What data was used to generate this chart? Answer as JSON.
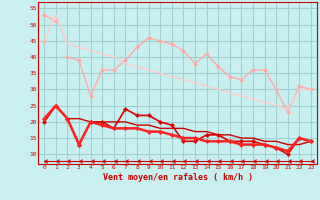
{
  "x": [
    0,
    1,
    2,
    3,
    4,
    5,
    6,
    7,
    8,
    9,
    10,
    11,
    12,
    13,
    14,
    15,
    16,
    17,
    18,
    19,
    20,
    21,
    22,
    23
  ],
  "background_color": "#c8f0f0",
  "grid_color": "#a0d0d0",
  "xlabel": "Vent moyen/en rafales ( km/h )",
  "ylim": [
    7,
    57
  ],
  "yticks": [
    10,
    15,
    20,
    25,
    30,
    35,
    40,
    45,
    50,
    55
  ],
  "lines": [
    {
      "y": [
        53,
        51,
        null,
        null,
        null,
        null,
        null,
        null,
        null,
        null,
        null,
        null,
        null,
        null,
        null,
        null,
        null,
        null,
        null,
        null,
        null,
        null,
        null,
        null
      ],
      "color": "#ffaaaa",
      "lw": 1.0,
      "marker": "D",
      "ms": 2
    },
    {
      "y": [
        45,
        null,
        40,
        39,
        28,
        36,
        36,
        39,
        43,
        46,
        45,
        44,
        42,
        38,
        41,
        37,
        34,
        33,
        36,
        36,
        30,
        23,
        31,
        30
      ],
      "color": "#ffaaaa",
      "lw": 1.0,
      "marker": "D",
      "ms": 2
    },
    {
      "y": [
        45,
        53,
        44,
        43,
        42,
        41,
        40,
        38,
        37,
        36,
        35,
        34,
        33,
        32,
        31,
        30,
        29,
        28,
        27,
        26,
        25,
        24,
        30,
        30
      ],
      "color": "#ffcccc",
      "lw": 1.0,
      "marker": null,
      "ms": 0
    },
    {
      "y": [
        20,
        25,
        21,
        13,
        20,
        20,
        18,
        24,
        22,
        22,
        20,
        19,
        14,
        14,
        16,
        16,
        14,
        14,
        14,
        13,
        12,
        10,
        15,
        14
      ],
      "color": "#dd0000",
      "lw": 1.2,
      "marker": "D",
      "ms": 2
    },
    {
      "y": [
        21,
        null,
        21,
        21,
        20,
        20,
        20,
        20,
        19,
        19,
        18,
        18,
        18,
        17,
        17,
        16,
        16,
        15,
        15,
        14,
        14,
        13,
        13,
        14
      ],
      "color": "#cc0000",
      "lw": 1.0,
      "marker": null,
      "ms": 0
    },
    {
      "y": [
        21,
        25,
        21,
        13,
        20,
        19,
        18,
        18,
        18,
        17,
        17,
        16,
        15,
        15,
        14,
        14,
        14,
        13,
        13,
        13,
        12,
        11,
        15,
        14
      ],
      "color": "#ff2222",
      "lw": 1.8,
      "marker": "D",
      "ms": 2
    },
    {
      "y": [
        8,
        8,
        8,
        8,
        8,
        8,
        8,
        8,
        8,
        8,
        8,
        8,
        8,
        8,
        8,
        8,
        8,
        8,
        8,
        8,
        8,
        8,
        8,
        8
      ],
      "color": "#cc0000",
      "lw": 0.8,
      "marker": 4,
      "ms": 3
    }
  ]
}
